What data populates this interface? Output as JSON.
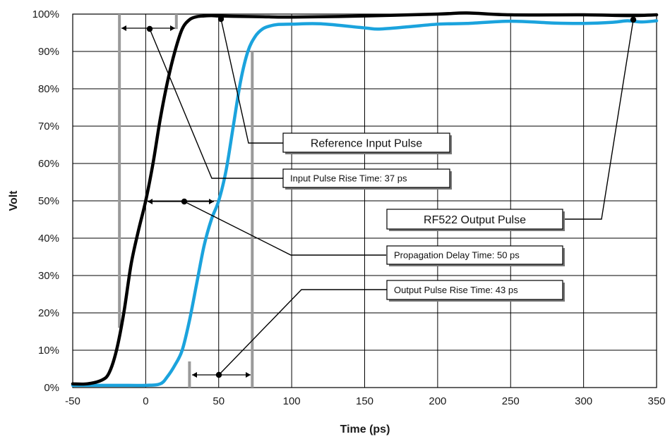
{
  "chart_data": {
    "type": "line",
    "xlabel": "Time (ps)",
    "ylabel": "Volt",
    "xlim": [
      -50,
      350
    ],
    "ylim": [
      0,
      100
    ],
    "x_ticks": [
      -50,
      0,
      50,
      100,
      150,
      200,
      250,
      300,
      350
    ],
    "y_ticks": [
      0,
      10,
      20,
      30,
      40,
      50,
      60,
      70,
      80,
      90,
      100
    ],
    "y_tick_labels": [
      "0%",
      "10%",
      "20%",
      "30%",
      "40%",
      "50%",
      "60%",
      "70%",
      "80%",
      "90%",
      "100%"
    ],
    "grid": true,
    "colors": {
      "reference": "#000000",
      "output": "#1ba3dd",
      "marker": "#9a9a9a"
    },
    "series": [
      {
        "key": "reference",
        "x": [
          -50,
          -40,
          -30,
          -25,
          -20,
          -15,
          -10,
          -5,
          0,
          5,
          10,
          15,
          20,
          25,
          30,
          35,
          40,
          45,
          50,
          60,
          80,
          100,
          150,
          200,
          220,
          250,
          300,
          330,
          350
        ],
        "values": [
          1,
          1,
          2,
          4,
          10,
          20,
          33,
          42,
          50,
          60,
          72,
          82,
          90,
          96,
          98.5,
          99.3,
          99.5,
          99.6,
          99.5,
          99.4,
          99.3,
          99.2,
          99.5,
          100,
          100.3,
          99.8,
          99.8,
          99.6,
          99.8
        ]
      },
      {
        "key": "output",
        "x": [
          -50,
          -20,
          0,
          10,
          15,
          20,
          25,
          30,
          35,
          40,
          45,
          50,
          55,
          60,
          65,
          70,
          75,
          80,
          85,
          90,
          100,
          120,
          150,
          160,
          180,
          200,
          220,
          250,
          280,
          300,
          320,
          330,
          340,
          350
        ],
        "values": [
          0.6,
          0.6,
          0.6,
          1,
          3,
          6,
          10,
          18,
          28,
          38,
          45,
          50,
          58,
          70,
          82,
          90,
          94,
          96,
          96.8,
          97.2,
          97.3,
          97.4,
          96.3,
          96.0,
          96.6,
          97.3,
          97.5,
          98.1,
          97.6,
          97.5,
          97.8,
          98.2,
          97.9,
          98.2
        ]
      }
    ],
    "annotations": [
      {
        "key": "ref",
        "text": "Reference Input Pulse"
      },
      {
        "key": "inrise",
        "text": "Input Pulse Rise Time: 37 ps"
      },
      {
        "key": "rf522",
        "text": "RF522 Output Pulse"
      },
      {
        "key": "prop",
        "text": "Propagation Delay Time: 50 ps"
      },
      {
        "key": "outrise",
        "text": "Output Pulse Rise Time: 43 ps"
      }
    ]
  }
}
